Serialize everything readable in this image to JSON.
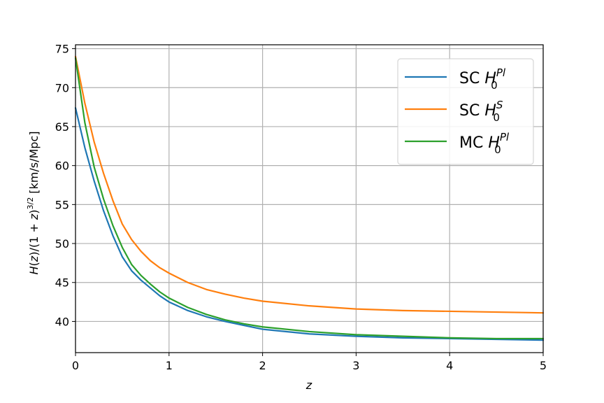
{
  "chart_data": {
    "type": "line",
    "title": "",
    "xlabel": "z",
    "ylabel": "H(z)/(1+z)^{3/2} [km/s/Mpc]",
    "ylabel_parts": {
      "main": "H(z)/(1 + z)",
      "sup": "3/2",
      "tail": " [km/s/Mpc]"
    },
    "xlim": [
      0,
      5
    ],
    "ylim": [
      36,
      75.5
    ],
    "x_ticks": [
      0,
      1,
      2,
      3,
      4,
      5
    ],
    "y_ticks": [
      40,
      45,
      50,
      55,
      60,
      65,
      70,
      75
    ],
    "grid": true,
    "legend_position": "top-right",
    "series": [
      {
        "name": "SC H_0^{Pl}",
        "legend": {
          "prefix": "SC ",
          "base": "H",
          "sup": "Pl",
          "sub": "0"
        },
        "color": "#1f77b4",
        "points": [
          [
            0,
            67.4
          ],
          [
            0.1,
            62.3
          ],
          [
            0.2,
            58.0
          ],
          [
            0.3,
            54.2
          ],
          [
            0.4,
            51.0
          ],
          [
            0.5,
            48.3
          ],
          [
            0.6,
            46.5
          ],
          [
            0.7,
            45.3
          ],
          [
            0.8,
            44.3
          ],
          [
            0.9,
            43.3
          ],
          [
            1.0,
            42.5
          ],
          [
            1.2,
            41.4
          ],
          [
            1.4,
            40.6
          ],
          [
            1.6,
            40.0
          ],
          [
            1.8,
            39.5
          ],
          [
            2.0,
            39.0
          ],
          [
            2.5,
            38.4
          ],
          [
            3.0,
            38.1
          ],
          [
            3.5,
            37.9
          ],
          [
            4.0,
            37.8
          ],
          [
            4.5,
            37.7
          ],
          [
            5.0,
            37.6
          ]
        ]
      },
      {
        "name": "SC H_0^{S}",
        "legend": {
          "prefix": "SC ",
          "base": "H",
          "sup": "S",
          "sub": "0"
        },
        "color": "#ff7f0e",
        "points": [
          [
            0,
            74.0
          ],
          [
            0.1,
            68.0
          ],
          [
            0.2,
            63.0
          ],
          [
            0.3,
            59.0
          ],
          [
            0.4,
            55.5
          ],
          [
            0.5,
            52.5
          ],
          [
            0.6,
            50.5
          ],
          [
            0.7,
            49.0
          ],
          [
            0.8,
            47.8
          ],
          [
            0.9,
            46.9
          ],
          [
            1.0,
            46.2
          ],
          [
            1.2,
            45.0
          ],
          [
            1.4,
            44.1
          ],
          [
            1.6,
            43.5
          ],
          [
            1.8,
            43.0
          ],
          [
            2.0,
            42.6
          ],
          [
            2.5,
            42.0
          ],
          [
            3.0,
            41.6
          ],
          [
            3.5,
            41.4
          ],
          [
            4.0,
            41.3
          ],
          [
            4.5,
            41.2
          ],
          [
            5.0,
            41.1
          ]
        ]
      },
      {
        "name": "MC H_0^{Pl}",
        "legend": {
          "prefix": "MC ",
          "base": "H",
          "sup": "Pl",
          "sub": "0"
        },
        "color": "#2ca02c",
        "points": [
          [
            0,
            73.8
          ],
          [
            0.1,
            65.5
          ],
          [
            0.2,
            59.8
          ],
          [
            0.3,
            55.7
          ],
          [
            0.4,
            52.3
          ],
          [
            0.5,
            49.5
          ],
          [
            0.6,
            47.3
          ],
          [
            0.7,
            45.9
          ],
          [
            0.8,
            44.8
          ],
          [
            0.9,
            43.8
          ],
          [
            1.0,
            43.0
          ],
          [
            1.2,
            41.8
          ],
          [
            1.4,
            40.9
          ],
          [
            1.6,
            40.2
          ],
          [
            1.8,
            39.7
          ],
          [
            2.0,
            39.3
          ],
          [
            2.5,
            38.7
          ],
          [
            3.0,
            38.3
          ],
          [
            3.5,
            38.1
          ],
          [
            4.0,
            37.9
          ],
          [
            4.5,
            37.8
          ],
          [
            5.0,
            37.8
          ]
        ]
      }
    ]
  }
}
